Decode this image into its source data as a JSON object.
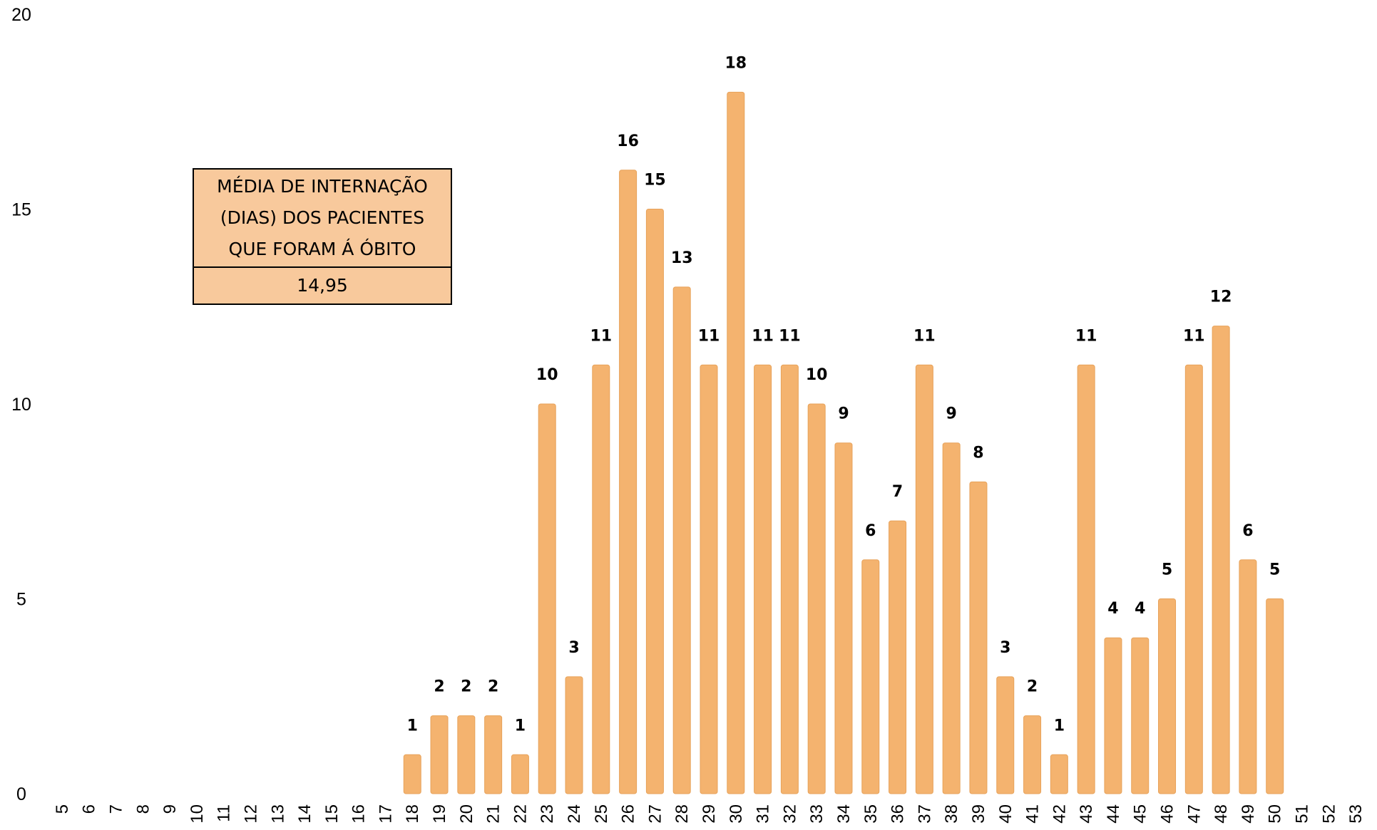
{
  "chart_data": {
    "type": "bar",
    "categories": [
      "5",
      "6",
      "7",
      "8",
      "9",
      "10",
      "11",
      "12",
      "13",
      "14",
      "15",
      "16",
      "17",
      "18",
      "19",
      "20",
      "21",
      "22",
      "23",
      "24",
      "25",
      "26",
      "27",
      "28",
      "29",
      "30",
      "31",
      "32",
      "33",
      "34",
      "35",
      "36",
      "37",
      "38",
      "39",
      "40",
      "41",
      "42",
      "43",
      "44",
      "45",
      "46",
      "47",
      "48",
      "49",
      "50",
      "51",
      "52",
      "53"
    ],
    "values": [
      null,
      null,
      null,
      null,
      null,
      null,
      null,
      null,
      null,
      null,
      null,
      null,
      null,
      1,
      2,
      2,
      2,
      1,
      10,
      3,
      11,
      16,
      15,
      13,
      11,
      18,
      11,
      11,
      10,
      9,
      6,
      7,
      11,
      9,
      8,
      3,
      2,
      1,
      11,
      4,
      4,
      5,
      11,
      12,
      6,
      5,
      null,
      null,
      null
    ],
    "title": "",
    "xlabel": "",
    "ylabel": "",
    "ylim": [
      0,
      20
    ],
    "y_ticks": [
      "0",
      "5",
      "10",
      "15",
      "20"
    ],
    "grid": false,
    "bar_color": "#f4b36f",
    "bar_edge_color": "#e7a25a",
    "data_labels": true
  },
  "annotation": {
    "title": "MÉDIA DE INTERNAÇÃO (DIAS) DOS PACIENTES QUE FORAM Á ÓBITO",
    "value": "14,95",
    "background": "#f8c99c"
  }
}
